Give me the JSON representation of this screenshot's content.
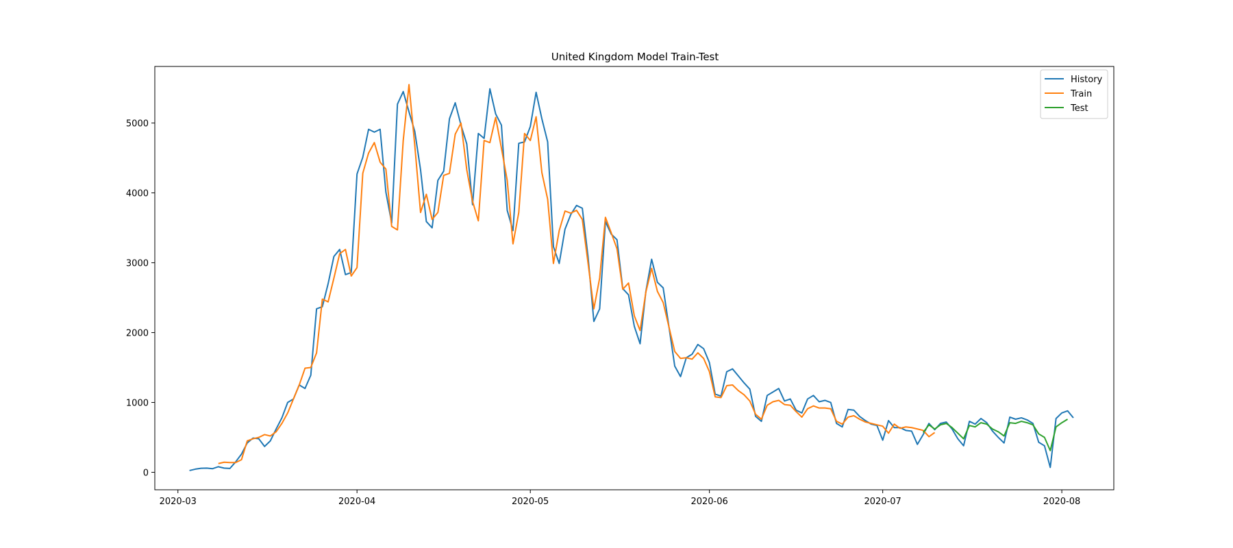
{
  "chart_data": {
    "type": "line",
    "title": "United Kingdom Model Train-Test",
    "xlabel": "",
    "ylabel": "",
    "xlim": [
      "2020-02-26",
      "2020-08-10"
    ],
    "ylim": [
      -250,
      5810
    ],
    "x_ticks": [
      "2020-03",
      "2020-04",
      "2020-05",
      "2020-06",
      "2020-07",
      "2020-08"
    ],
    "x_tick_dates": [
      "2020-03-01",
      "2020-04-01",
      "2020-05-01",
      "2020-06-01",
      "2020-07-01",
      "2020-08-01"
    ],
    "y_ticks": [
      0,
      1000,
      2000,
      3000,
      4000,
      5000
    ],
    "grid": false,
    "legend_position": "top-right",
    "series": [
      {
        "name": "History",
        "color": "#1f77b4",
        "start_date": "2020-03-03",
        "values": [
          25,
          45,
          58,
          60,
          52,
          80,
          60,
          55,
          150,
          260,
          420,
          490,
          480,
          370,
          450,
          620,
          780,
          1000,
          1050,
          1250,
          1200,
          1390,
          2340,
          2370,
          2700,
          3090,
          3190,
          2830,
          2860,
          4270,
          4510,
          4910,
          4870,
          4910,
          4010,
          3570,
          5270,
          5450,
          5160,
          4880,
          4330,
          3590,
          3500,
          4180,
          4310,
          5060,
          5290,
          4970,
          4700,
          3830,
          4850,
          4780,
          5490,
          5130,
          4970,
          3750,
          3460,
          4710,
          4730,
          4950,
          5440,
          5060,
          4730,
          3230,
          2990,
          3480,
          3690,
          3820,
          3780,
          3080,
          2160,
          2340,
          3590,
          3410,
          3330,
          2630,
          2540,
          2090,
          1840,
          2590,
          3050,
          2720,
          2640,
          2080,
          1520,
          1370,
          1640,
          1690,
          1830,
          1770,
          1570,
          1120,
          1090,
          1440,
          1480,
          1380,
          1280,
          1190,
          800,
          730,
          1100,
          1150,
          1200,
          1020,
          1050,
          890,
          850,
          1050,
          1100,
          1010,
          1030,
          1000,
          700,
          650,
          900,
          890,
          800,
          740,
          690,
          670,
          460,
          740,
          640,
          640,
          600,
          590,
          400,
          540,
          700,
          610,
          700,
          720,
          620,
          480,
          380,
          730,
          690,
          770,
          710,
          590,
          500,
          420,
          790,
          760,
          780,
          750,
          700,
          430,
          380,
          70,
          770,
          850,
          880,
          780
        ]
      },
      {
        "name": "Train",
        "color": "#ff7f0e",
        "start_date": "2020-03-08",
        "values": [
          125,
          145,
          140,
          140,
          180,
          450,
          480,
          500,
          540,
          520,
          580,
          700,
          850,
          1050,
          1250,
          1490,
          1500,
          1710,
          2480,
          2440,
          2780,
          3130,
          3190,
          2810,
          2930,
          4280,
          4570,
          4720,
          4440,
          4340,
          3520,
          3470,
          4750,
          5550,
          4680,
          3720,
          3980,
          3620,
          3720,
          4250,
          4280,
          4840,
          5000,
          4330,
          3880,
          3600,
          4750,
          4720,
          5080,
          4640,
          4180,
          3270,
          3720,
          4850,
          4750,
          5090,
          4290,
          3910,
          2990,
          3460,
          3740,
          3710,
          3750,
          3620,
          2990,
          2340,
          2780,
          3650,
          3430,
          3200,
          2620,
          2710,
          2240,
          2030,
          2580,
          2920,
          2590,
          2430,
          2080,
          1730,
          1630,
          1640,
          1620,
          1710,
          1630,
          1440,
          1080,
          1070,
          1240,
          1250,
          1170,
          1110,
          1020,
          830,
          760,
          960,
          1010,
          1030,
          970,
          960,
          870,
          790,
          910,
          950,
          920,
          920,
          910,
          730,
          690,
          790,
          810,
          760,
          720,
          700,
          680,
          660,
          560,
          690,
          630,
          650,
          640,
          620,
          600,
          510,
          570
        ]
      },
      {
        "name": "Test",
        "color": "#2ca02c",
        "start_date": "2020-07-08",
        "values": [
          570,
          680,
          620,
          680,
          700,
          640,
          560,
          480,
          670,
          650,
          710,
          690,
          620,
          580,
          520,
          710,
          700,
          730,
          710,
          680,
          550,
          500,
          310,
          650,
          710,
          760
        ]
      }
    ]
  }
}
